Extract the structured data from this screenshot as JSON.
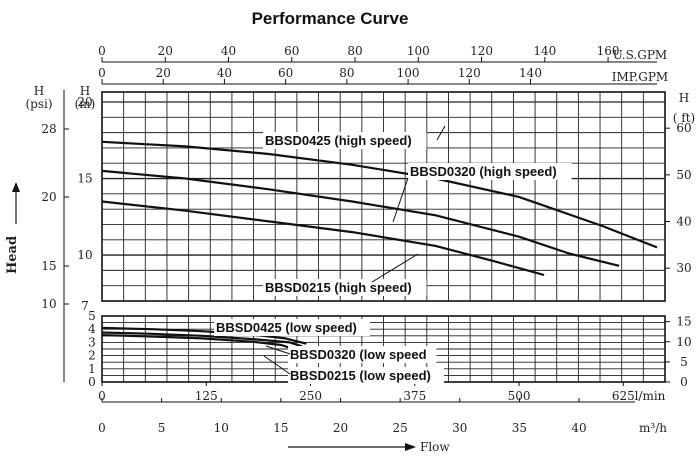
{
  "chart_data": {
    "type": "line",
    "title": "Performance Curve",
    "axes": {
      "top_usgpm": {
        "unit": "U.S.GPM",
        "ticks": [
          "0",
          "20",
          "40",
          "60",
          "80",
          "100",
          "120",
          "140",
          "160"
        ],
        "range": [
          0,
          178
        ]
      },
      "top_impgpm": {
        "unit": "IMP.GPM",
        "ticks": [
          "0",
          "20",
          "40",
          "60",
          "80",
          "100",
          "120",
          "140"
        ],
        "range": [
          0,
          148
        ]
      },
      "bottom_lmin": {
        "unit": "l/min",
        "ticks": [
          "0",
          "125",
          "250",
          "375",
          "500",
          "625"
        ],
        "range": [
          0,
          675
        ]
      },
      "bottom_m3h": {
        "unit": "m³/h",
        "ticks": [
          "0",
          "5",
          "10",
          "15",
          "20",
          "25",
          "30",
          "35",
          "40"
        ],
        "range": [
          0,
          40.5
        ]
      },
      "flow_label": "Flow",
      "left_psi": {
        "label": "H",
        "unit": "(psi)",
        "ticks": [
          "28",
          "20",
          "15",
          "10"
        ]
      },
      "left_m": {
        "label": "H",
        "unit": "(m)",
        "ticks_upper": [
          "20",
          "15",
          "10",
          "7"
        ],
        "ticks_lower": [
          "5",
          "4",
          "3",
          "2",
          "1",
          "0"
        ]
      },
      "right_ft": {
        "label": "H",
        "unit": "( ft)",
        "ticks_upper": [
          "60",
          "50",
          "40",
          "30"
        ],
        "ticks_lower": [
          "15",
          "10",
          "5",
          "0"
        ]
      },
      "head_label": "Head"
    },
    "series": [
      {
        "name": "BBSD0425 (high speed)",
        "panel": "upper",
        "x_unit": "l/min",
        "y_unit": "m",
        "points": [
          [
            0,
            17.4
          ],
          [
            100,
            17.1
          ],
          [
            200,
            16.6
          ],
          [
            300,
            15.9
          ],
          [
            400,
            15.0
          ],
          [
            500,
            13.8
          ],
          [
            600,
            11.9
          ],
          [
            700,
            10.5
          ]
        ]
      },
      {
        "name": "BBSD0320 (high speed)",
        "panel": "upper",
        "x_unit": "l/min",
        "y_unit": "m",
        "points": [
          [
            0,
            15.5
          ],
          [
            100,
            15.0
          ],
          [
            200,
            14.3
          ],
          [
            300,
            13.5
          ],
          [
            400,
            12.6
          ],
          [
            500,
            11.2
          ],
          [
            560,
            10.1
          ],
          [
            620,
            9.3
          ]
        ]
      },
      {
        "name": "BBSD0215 (high speed)",
        "panel": "upper",
        "x_unit": "l/min",
        "y_unit": "m",
        "points": [
          [
            0,
            13.5
          ],
          [
            100,
            12.9
          ],
          [
            200,
            12.2
          ],
          [
            300,
            11.5
          ],
          [
            400,
            10.6
          ],
          [
            470,
            9.6
          ],
          [
            530,
            8.7
          ]
        ]
      },
      {
        "name": "BBSD0425 (low speed)",
        "panel": "lower",
        "x_unit": "l/min",
        "y_unit": "m",
        "points": [
          [
            0,
            4.1
          ],
          [
            60,
            4.0
          ],
          [
            120,
            3.85
          ],
          [
            180,
            3.6
          ],
          [
            220,
            3.3
          ],
          [
            245,
            2.9
          ]
        ]
      },
      {
        "name": "BBSD0320 (low speed",
        "panel": "lower",
        "x_unit": "l/min",
        "y_unit": "m",
        "points": [
          [
            0,
            3.75
          ],
          [
            60,
            3.65
          ],
          [
            120,
            3.5
          ],
          [
            180,
            3.25
          ],
          [
            225,
            3.0
          ],
          [
            240,
            2.7
          ]
        ]
      },
      {
        "name": "BBSD0215 (low speed)",
        "panel": "lower",
        "x_unit": "l/min",
        "y_unit": "m",
        "points": [
          [
            0,
            3.55
          ],
          [
            60,
            3.45
          ],
          [
            120,
            3.3
          ],
          [
            180,
            3.05
          ],
          [
            215,
            2.8
          ],
          [
            230,
            2.5
          ]
        ]
      }
    ],
    "grid": true
  }
}
